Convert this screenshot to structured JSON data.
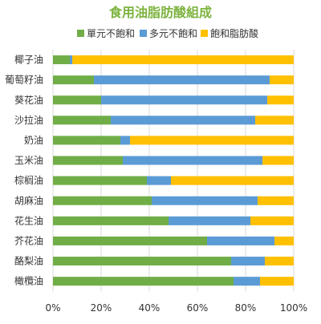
{
  "chart_data": {
    "type": "bar",
    "orientation": "horizontal",
    "stacked": true,
    "title": "食用油脂肪酸組成",
    "categories": [
      "椰子油",
      "葡萄籽油",
      "葵花油",
      "沙拉油",
      "奶油",
      "玉米油",
      "棕榈油",
      "胡麻油",
      "花生油",
      "芥花油",
      "酪梨油",
      "橄欖油"
    ],
    "series": [
      {
        "name": "單元不飽和",
        "color": "#70ad47",
        "values": [
          7,
          17,
          20,
          24,
          28,
          29,
          39,
          41,
          48,
          64,
          74,
          75
        ]
      },
      {
        "name": "多元不飽和",
        "color": "#5b9bd5",
        "values": [
          1,
          73,
          69,
          60,
          4,
          58,
          10,
          44,
          34,
          28,
          14,
          11
        ]
      },
      {
        "name": "飽和脂肪酸",
        "color": "#ffc000",
        "values": [
          92,
          10,
          11,
          16,
          68,
          13,
          51,
          15,
          18,
          8,
          12,
          14
        ]
      }
    ],
    "xlim": [
      0,
      100
    ],
    "xticks": [
      "0%",
      "20%",
      "40%",
      "60%",
      "80%",
      "100%"
    ],
    "legend_position": "top",
    "grid": true
  }
}
